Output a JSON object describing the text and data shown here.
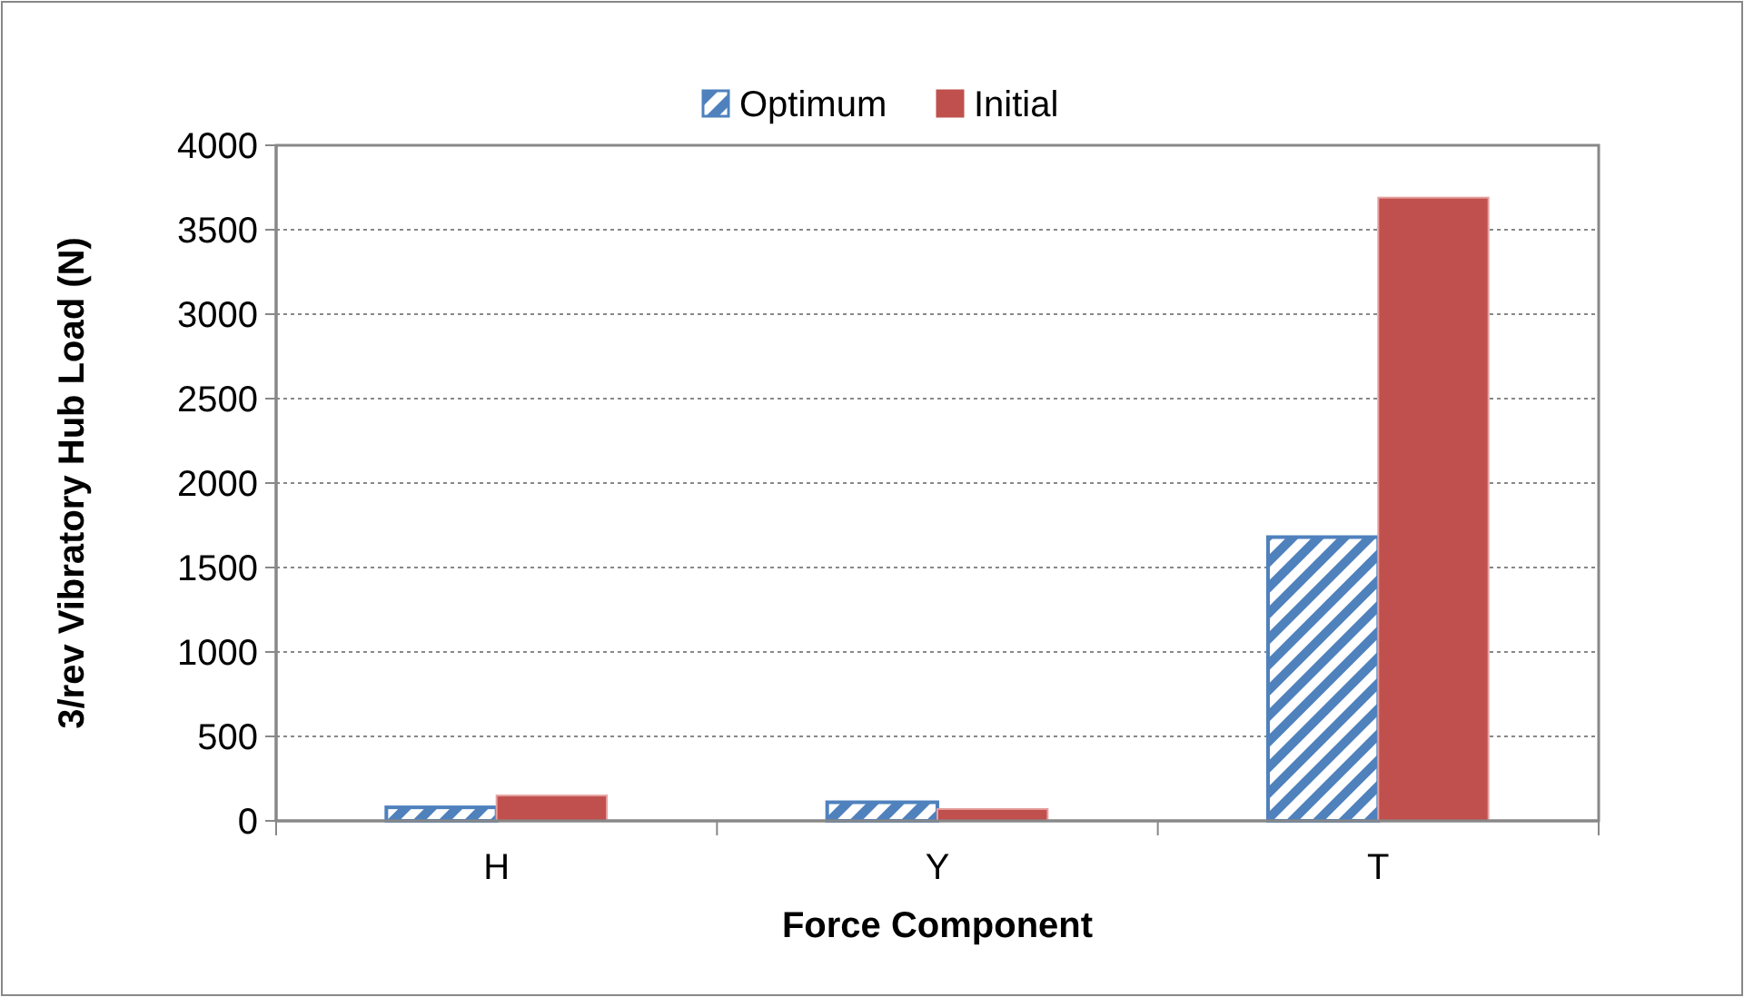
{
  "chart_data": {
    "type": "bar",
    "xlabel": "Force Component",
    "ylabel": "3/rev Vibratory Hub Load (N)",
    "categories": [
      "H",
      "Y",
      "T"
    ],
    "series": [
      {
        "name": "Optimum",
        "color": "#4f81bd",
        "values": [
          80,
          110,
          1680
        ]
      },
      {
        "name": "Initial",
        "color": "#c0504d",
        "values": [
          150,
          70,
          3690
        ]
      }
    ],
    "ylim": [
      0,
      4000
    ],
    "yticks": [
      0,
      500,
      1000,
      1500,
      2000,
      2500,
      3000,
      3500,
      4000
    ],
    "grid": "y",
    "legend": "top"
  }
}
